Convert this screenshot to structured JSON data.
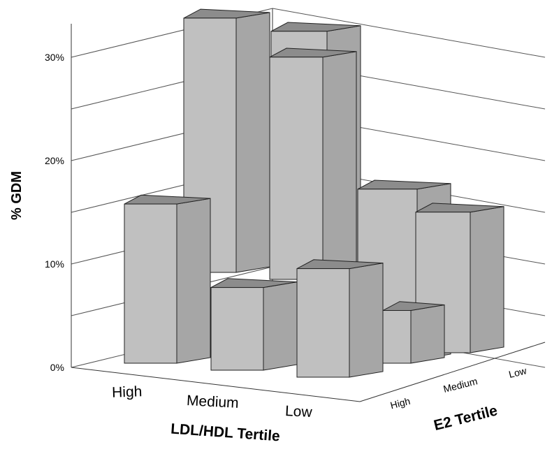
{
  "chart_data": {
    "type": "bar",
    "subtype": "3d-bar-grid",
    "title": "",
    "ylabel": "% GDM",
    "xlabel": "LDL/HDL Tertile",
    "zlabel": "E2 Tertile",
    "ylim": [
      0,
      30
    ],
    "yticks": [
      "0%",
      "10%",
      "20%",
      "30%"
    ],
    "ldl_hdl_categories": [
      "High",
      "Medium",
      "Low"
    ],
    "e2_categories": [
      "High",
      "Medium",
      "Low"
    ],
    "series": [
      {
        "ldl_hdl": "High",
        "e2": "High",
        "value": 15.4
      },
      {
        "ldl_hdl": "High",
        "e2": "Medium",
        "value": 24.6
      },
      {
        "ldl_hdl": "Medium",
        "e2": "High",
        "value": 8.0
      },
      {
        "ldl_hdl": "Medium",
        "e2": "Medium",
        "value": 21.5
      },
      {
        "ldl_hdl": "Medium",
        "e2": "Low",
        "value": 24.0
      },
      {
        "ldl_hdl": "Low",
        "e2": "High",
        "value": 10.5
      },
      {
        "ldl_hdl": "Low",
        "e2": "Medium",
        "value": 5.1
      },
      {
        "ldl_hdl": "Low",
        "e2": "Low",
        "value": 13.6
      },
      {
        "ldl_hdl": "Low",
        "e2": "Low (rear)",
        "value": 16.5
      }
    ],
    "grid": true,
    "colors": {
      "front": "#c0c0c0",
      "side": "#a6a6a6",
      "top": "#8c8c8c",
      "stroke": "#222222",
      "grid": "#555555"
    }
  }
}
